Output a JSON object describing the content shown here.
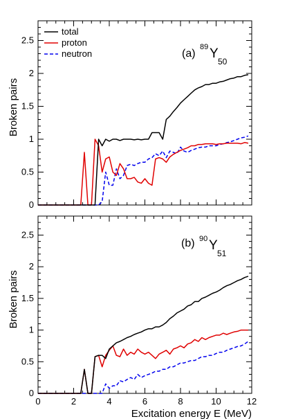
{
  "chart_data": [
    {
      "type": "line",
      "panel_label": "(a)",
      "nucleus": {
        "mass": "89",
        "element": "Y",
        "n": "50"
      },
      "xlabel": "Excitation energy E (MeV)",
      "ylabel": "Broken pairs",
      "xlim": [
        0,
        12
      ],
      "ylim": [
        0,
        2.8
      ],
      "xticks": [
        "0",
        "2",
        "4",
        "6",
        "8",
        "10",
        "12"
      ],
      "yticks": [
        "0",
        "0.5",
        "1",
        "1.5",
        "2",
        "2.5"
      ],
      "legend_position": "top-left",
      "series": [
        {
          "name": "total",
          "color": "#000000",
          "dash": "solid",
          "x": [
            0,
            0.4,
            0.8,
            1.2,
            1.6,
            2.0,
            2.4,
            2.6,
            2.8,
            3.0,
            3.2,
            3.4,
            3.6,
            3.8,
            4.0,
            4.2,
            4.4,
            4.6,
            4.8,
            5.0,
            5.2,
            5.4,
            5.6,
            5.8,
            6.0,
            6.2,
            6.4,
            6.6,
            6.8,
            7.0,
            7.2,
            7.4,
            7.6,
            7.8,
            8.0,
            8.2,
            8.4,
            8.6,
            8.8,
            9.0,
            9.2,
            9.4,
            9.6,
            9.8,
            10.0,
            10.2,
            10.4,
            10.6,
            10.8,
            11.0,
            11.2,
            11.4,
            11.6,
            11.8
          ],
          "y": [
            0,
            0,
            0,
            0,
            0,
            0,
            0,
            0,
            0,
            0,
            0,
            1.0,
            0.9,
            1.0,
            0.97,
            1.0,
            1.0,
            0.98,
            1.0,
            1.0,
            1.0,
            0.99,
            1.0,
            0.99,
            1.0,
            1.0,
            1.1,
            1.1,
            1.1,
            1.0,
            1.3,
            1.35,
            1.42,
            1.48,
            1.55,
            1.6,
            1.65,
            1.7,
            1.75,
            1.78,
            1.8,
            1.83,
            1.83,
            1.85,
            1.85,
            1.87,
            1.88,
            1.9,
            1.92,
            1.93,
            1.95,
            1.95,
            1.97,
            1.98
          ]
        },
        {
          "name": "proton",
          "color": "#e00000",
          "dash": "solid",
          "x": [
            0,
            0.4,
            0.8,
            1.2,
            1.6,
            2.0,
            2.4,
            2.6,
            2.8,
            3.0,
            3.2,
            3.4,
            3.6,
            3.8,
            4.0,
            4.2,
            4.4,
            4.6,
            4.8,
            5.0,
            5.2,
            5.4,
            5.6,
            5.8,
            6.0,
            6.2,
            6.4,
            6.6,
            6.8,
            7.0,
            7.2,
            7.4,
            7.6,
            7.8,
            8.0,
            8.2,
            8.4,
            8.6,
            8.8,
            9.0,
            9.2,
            9.4,
            9.6,
            9.8,
            10.0,
            10.2,
            10.4,
            10.6,
            10.8,
            11.0,
            11.2,
            11.4,
            11.6,
            11.8
          ],
          "y": [
            0,
            0,
            0,
            0,
            0,
            0,
            0,
            0.8,
            0,
            0,
            1.0,
            0.9,
            0.5,
            0.7,
            0.73,
            0.5,
            0.45,
            0.63,
            0.55,
            0.4,
            0.4,
            0.42,
            0.35,
            0.33,
            0.4,
            0.33,
            0.3,
            0.7,
            0.72,
            0.7,
            0.65,
            0.73,
            0.77,
            0.8,
            0.83,
            0.85,
            0.87,
            0.9,
            0.9,
            0.92,
            0.92,
            0.93,
            0.93,
            0.93,
            0.92,
            0.93,
            0.93,
            0.94,
            0.94,
            0.94,
            0.94,
            0.93,
            0.95,
            0.94
          ]
        },
        {
          "name": "neutron",
          "color": "#0000ee",
          "dash": "dashed",
          "x": [
            0,
            0.4,
            0.8,
            1.2,
            1.6,
            2.0,
            2.4,
            2.8,
            3.2,
            3.4,
            3.6,
            3.8,
            4.0,
            4.2,
            4.4,
            4.6,
            4.8,
            5.0,
            5.2,
            5.4,
            5.6,
            5.8,
            6.0,
            6.2,
            6.4,
            6.6,
            6.8,
            7.0,
            7.2,
            7.4,
            7.6,
            7.8,
            8.0,
            8.2,
            8.4,
            8.6,
            8.8,
            9.0,
            9.2,
            9.4,
            9.6,
            9.8,
            10.0,
            10.2,
            10.4,
            10.6,
            10.8,
            11.0,
            11.2,
            11.4,
            11.6,
            11.8
          ],
          "y": [
            0,
            0,
            0,
            0,
            0,
            0,
            0,
            0,
            0,
            0,
            0.05,
            0.5,
            0.3,
            0.3,
            0.55,
            0.4,
            0.45,
            0.6,
            0.62,
            0.6,
            0.63,
            0.65,
            0.65,
            0.7,
            0.72,
            0.78,
            0.75,
            0.82,
            0.72,
            0.82,
            0.8,
            0.78,
            0.88,
            0.82,
            0.8,
            0.83,
            0.85,
            0.87,
            0.88,
            0.88,
            0.9,
            0.9,
            0.9,
            0.92,
            0.93,
            0.95,
            0.96,
            0.98,
            1.0,
            1.02,
            1.03,
            1.05
          ]
        }
      ]
    },
    {
      "type": "line",
      "panel_label": "(b)",
      "nucleus": {
        "mass": "90",
        "element": "Y",
        "n": "51"
      },
      "xlabel": "Excitation energy E (MeV)",
      "ylabel": "Broken pairs",
      "xlim": [
        0,
        12
      ],
      "ylim": [
        0,
        2.8
      ],
      "xticks": [
        "0",
        "2",
        "4",
        "6",
        "8",
        "10",
        "12"
      ],
      "yticks": [
        "0",
        "0.5",
        "1",
        "1.5",
        "2",
        "2.5"
      ],
      "series": [
        {
          "name": "total",
          "color": "#000000",
          "dash": "solid",
          "x": [
            0,
            0.4,
            0.8,
            1.2,
            1.6,
            2.0,
            2.4,
            2.6,
            2.8,
            3.0,
            3.2,
            3.4,
            3.6,
            3.8,
            4.0,
            4.2,
            4.4,
            4.6,
            4.8,
            5.0,
            5.2,
            5.4,
            5.6,
            5.8,
            6.0,
            6.2,
            6.4,
            6.6,
            6.8,
            7.0,
            7.2,
            7.4,
            7.6,
            7.8,
            8.0,
            8.2,
            8.4,
            8.6,
            8.8,
            9.0,
            9.2,
            9.4,
            9.6,
            9.8,
            10.0,
            10.2,
            10.4,
            10.6,
            10.8,
            11.0,
            11.2,
            11.4,
            11.6,
            11.8
          ],
          "y": [
            0,
            0,
            0,
            0,
            0,
            0,
            0,
            0.38,
            0,
            0,
            0.58,
            0.6,
            0.6,
            0.55,
            0.7,
            0.75,
            0.8,
            0.82,
            0.85,
            0.88,
            0.9,
            0.93,
            0.95,
            0.97,
            1.0,
            1.02,
            1.02,
            1.05,
            1.05,
            1.08,
            1.12,
            1.18,
            1.22,
            1.27,
            1.3,
            1.33,
            1.38,
            1.4,
            1.45,
            1.45,
            1.5,
            1.52,
            1.55,
            1.58,
            1.6,
            1.63,
            1.67,
            1.7,
            1.72,
            1.75,
            1.78,
            1.8,
            1.83,
            1.85
          ]
        },
        {
          "name": "proton",
          "color": "#e00000",
          "dash": "solid",
          "x": [
            0,
            0.4,
            0.8,
            1.2,
            1.6,
            2.0,
            2.4,
            2.6,
            2.8,
            3.0,
            3.2,
            3.4,
            3.6,
            3.8,
            4.0,
            4.2,
            4.4,
            4.6,
            4.8,
            5.0,
            5.2,
            5.4,
            5.6,
            5.8,
            6.0,
            6.2,
            6.4,
            6.6,
            6.8,
            7.0,
            7.2,
            7.4,
            7.6,
            7.8,
            8.0,
            8.2,
            8.4,
            8.6,
            8.8,
            9.0,
            9.2,
            9.4,
            9.6,
            9.8,
            10.0,
            10.2,
            10.4,
            10.6,
            10.8,
            11.0,
            11.2,
            11.4,
            11.6,
            11.8
          ],
          "y": [
            0,
            0,
            0,
            0,
            0,
            0,
            0,
            0.38,
            0,
            0,
            0.58,
            0.6,
            0.42,
            0.6,
            0.68,
            0.75,
            0.6,
            0.58,
            0.7,
            0.6,
            0.65,
            0.62,
            0.7,
            0.65,
            0.62,
            0.65,
            0.6,
            0.55,
            0.62,
            0.65,
            0.68,
            0.62,
            0.7,
            0.72,
            0.75,
            0.72,
            0.78,
            0.8,
            0.85,
            0.82,
            0.88,
            0.85,
            0.88,
            0.9,
            0.92,
            0.92,
            0.95,
            0.93,
            0.95,
            0.97,
            0.98,
            1.0,
            1.0,
            1.0
          ]
        },
        {
          "name": "neutron",
          "color": "#0000ee",
          "dash": "dashed",
          "x": [
            0,
            0.4,
            0.8,
            1.2,
            1.6,
            2.0,
            2.4,
            2.8,
            3.2,
            3.4,
            3.6,
            3.8,
            4.0,
            4.2,
            4.4,
            4.6,
            4.8,
            5.0,
            5.2,
            5.4,
            5.6,
            5.8,
            6.0,
            6.2,
            6.4,
            6.6,
            6.8,
            7.0,
            7.2,
            7.4,
            7.6,
            7.8,
            8.0,
            8.2,
            8.4,
            8.6,
            8.8,
            9.0,
            9.2,
            9.4,
            9.6,
            9.8,
            10.0,
            10.2,
            10.4,
            10.6,
            10.8,
            11.0,
            11.2,
            11.4,
            11.6,
            11.8
          ],
          "y": [
            0,
            0,
            0,
            0,
            0,
            0,
            0,
            0,
            0,
            0,
            0,
            0.15,
            0.08,
            0.12,
            0.12,
            0.2,
            0.18,
            0.22,
            0.25,
            0.22,
            0.3,
            0.25,
            0.28,
            0.3,
            0.32,
            0.35,
            0.35,
            0.38,
            0.38,
            0.42,
            0.42,
            0.45,
            0.48,
            0.48,
            0.5,
            0.52,
            0.52,
            0.55,
            0.58,
            0.58,
            0.6,
            0.6,
            0.63,
            0.65,
            0.65,
            0.68,
            0.7,
            0.72,
            0.74,
            0.75,
            0.78,
            0.82
          ]
        }
      ]
    }
  ]
}
